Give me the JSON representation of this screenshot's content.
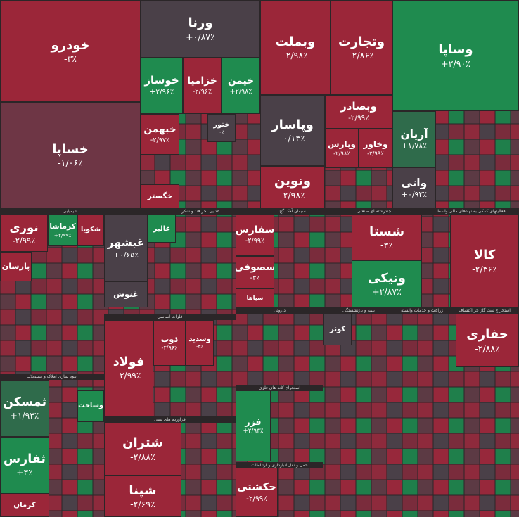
{
  "tiles": [
    {
      "name": "خودرو",
      "change": "-۳٪"
    },
    {
      "name": "خساپا",
      "change": "-۱/۰۶٪"
    },
    {
      "name": "ورنا",
      "change": "+۰/۸۷٪"
    },
    {
      "name": "وبملت",
      "change": "-۲/۹۸٪"
    },
    {
      "name": "وتجارت",
      "change": "-۲/۸۶٪"
    },
    {
      "name": "وساپا",
      "change": "+۲/۹۰٪"
    },
    {
      "name": "خوساز",
      "change": "+۲/۹۶٪"
    },
    {
      "name": "خزامیا",
      "change": "-۲/۹۶٪"
    },
    {
      "name": "خیمن",
      "change": "+۲/۹۸٪"
    },
    {
      "name": "خبهمن",
      "change": "-۲/۹۷٪"
    },
    {
      "name": "ختور",
      "change": "۰٪"
    },
    {
      "name": "وپاسار",
      "change": "-۰/۱۳٪"
    },
    {
      "name": "ونوین",
      "change": "-۲/۹۸٪"
    },
    {
      "name": "وبصادر",
      "change": "-۲/۹۹٪"
    },
    {
      "name": "وپارس",
      "change": "-۲/۹۸٪"
    },
    {
      "name": "وخاور",
      "change": "-۲/۹۹٪"
    },
    {
      "name": "آریان",
      "change": "+۱/۷۸٪"
    },
    {
      "name": "واتی",
      "change": "+۰/۹۲٪"
    },
    {
      "name": "خگستر"
    },
    {
      "name": "نوری",
      "change": "-۲/۹۹٪"
    },
    {
      "name": "کرماشا",
      "change": "+۲/۹۹٪"
    },
    {
      "name": "شکویا"
    },
    {
      "name": "پارسان"
    },
    {
      "name": "غبشهر",
      "change": "+۰/۶۵٪"
    },
    {
      "name": "غالبر"
    },
    {
      "name": "غنوش"
    },
    {
      "name": "سفارس",
      "change": "-۲/۹۹٪"
    },
    {
      "name": "سصوفی",
      "change": "-۳٪"
    },
    {
      "name": "سیاها"
    },
    {
      "name": "شستا",
      "change": "-۳٪"
    },
    {
      "name": "ونیکی",
      "change": "+۲/۸۷٪"
    },
    {
      "name": "کالا",
      "change": "-۲/۳۶٪"
    },
    {
      "name": "فولاد",
      "change": "-۲/۹۹٪"
    },
    {
      "name": "ذوب",
      "change": "-۲/۹۶٪"
    },
    {
      "name": "وسدید",
      "change": "-۳٪"
    },
    {
      "name": "حفاری",
      "change": "-۲/۸۸٪"
    },
    {
      "name": "ثمسکن",
      "change": "+۱/۹۳٪"
    },
    {
      "name": "ثفارس",
      "change": "+۳٪"
    },
    {
      "name": "شتران",
      "change": "-۲/۸۸٪"
    },
    {
      "name": "شپنا",
      "change": "-۲/۶۹٪"
    },
    {
      "name": "فزر",
      "change": "+۲/۹۳٪"
    },
    {
      "name": "حکشتی",
      "change": "-۲/۹۹٪"
    },
    {
      "name": "کوثر"
    },
    {
      "name": "وساخت"
    },
    {
      "name": "کرمان"
    }
  ],
  "sectors": [
    "شیمیایی",
    "غذایی بجز قند و شکر",
    "سیمان آهک گچ",
    "چندرشته ای صنعتی",
    "فعالیتهای کمکی به نهادهای مالی واسط",
    "فلزات اساسی",
    "انبوه سازی املاک و مستغلات",
    "فراورده های نفتی",
    "استخراج کانه های فلزی",
    "حمل و نقل انبارداری و ارتباطات",
    "بیمه و بازنشستگی",
    "استخراج نفت گاز جز اکتشاف",
    "زراعت و خدمات وابسته",
    "داروئی"
  ]
}
